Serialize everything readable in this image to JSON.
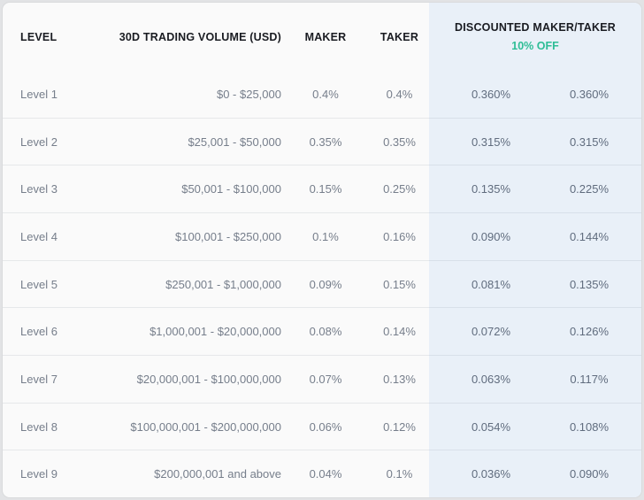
{
  "table": {
    "header": {
      "level": "LEVEL",
      "volume": "30D TRADING VOLUME (USD)",
      "maker": "MAKER",
      "taker": "TAKER",
      "discounted": "DISCOUNTED MAKER/TAKER",
      "discount_badge": "10% OFF"
    },
    "colors": {
      "accent_green": "#2ebd96",
      "discount_panel_bg": "#e9f0f8",
      "table_bg": "#fafafa",
      "header_text": "#1a1c22",
      "cell_text": "#767e8b"
    },
    "rows": [
      {
        "level": "Level 1",
        "volume": "$0 - $25,000",
        "maker": "0.4%",
        "taker": "0.4%",
        "disc_maker": "0.360%",
        "disc_taker": "0.360%"
      },
      {
        "level": "Level 2",
        "volume": "$25,001 - $50,000",
        "maker": "0.35%",
        "taker": "0.35%",
        "disc_maker": "0.315%",
        "disc_taker": "0.315%"
      },
      {
        "level": "Level 3",
        "volume": "$50,001 - $100,000",
        "maker": "0.15%",
        "taker": "0.25%",
        "disc_maker": "0.135%",
        "disc_taker": "0.225%"
      },
      {
        "level": "Level 4",
        "volume": "$100,001 - $250,000",
        "maker": "0.1%",
        "taker": "0.16%",
        "disc_maker": "0.090%",
        "disc_taker": "0.144%"
      },
      {
        "level": "Level 5",
        "volume": "$250,001 - $1,000,000",
        "maker": "0.09%",
        "taker": "0.15%",
        "disc_maker": "0.081%",
        "disc_taker": "0.135%"
      },
      {
        "level": "Level 6",
        "volume": "$1,000,001 - $20,000,000",
        "maker": "0.08%",
        "taker": "0.14%",
        "disc_maker": "0.072%",
        "disc_taker": "0.126%"
      },
      {
        "level": "Level 7",
        "volume": "$20,000,001 - $100,000,000",
        "maker": "0.07%",
        "taker": "0.13%",
        "disc_maker": "0.063%",
        "disc_taker": "0.117%"
      },
      {
        "level": "Level 8",
        "volume": "$100,000,001 - $200,000,000",
        "maker": "0.06%",
        "taker": "0.12%",
        "disc_maker": "0.054%",
        "disc_taker": "0.108%"
      },
      {
        "level": "Level 9",
        "volume": "$200,000,001 and above",
        "maker": "0.04%",
        "taker": "0.1%",
        "disc_maker": "0.036%",
        "disc_taker": "0.090%"
      }
    ]
  }
}
